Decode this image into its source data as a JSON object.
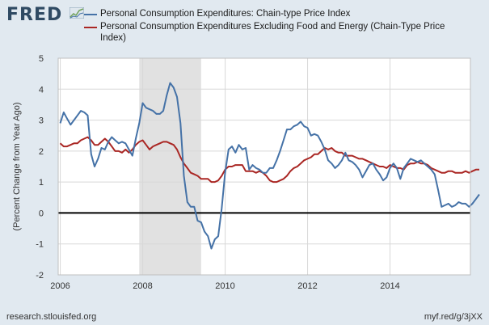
{
  "branding": {
    "logo_text": "FRED",
    "source": "research.stlouisfed.org",
    "short_url": "myf.red/g/3jXX"
  },
  "colors": {
    "series1": "#4572a7",
    "series2": "#aa2724",
    "recession": "#e1e1e1",
    "background": "#e1e9f0"
  },
  "chart_data": {
    "type": "line",
    "ylabel": "(Percent Change from Year Ago)",
    "ylim": [
      -2,
      5
    ],
    "yticks": [
      -2,
      -1,
      0,
      1,
      2,
      3,
      4,
      5
    ],
    "xlim": [
      2005.95,
      2015.95
    ],
    "xticks": [
      {
        "value": 2006,
        "label": "2006"
      },
      {
        "value": 2008,
        "label": "2008"
      },
      {
        "value": 2010,
        "label": "2010"
      },
      {
        "value": 2012,
        "label": "2012"
      },
      {
        "value": 2014,
        "label": "2014"
      }
    ],
    "grid": true,
    "legend_position": "top",
    "recession": [
      {
        "start": 2007.917,
        "end": 2009.417
      }
    ],
    "series": [
      {
        "name": "Personal Consumption Expenditures: Chain-type Price Index",
        "start": 2006.0,
        "step": 0.08333,
        "values": [
          2.9,
          3.25,
          3.05,
          2.85,
          3.0,
          3.15,
          3.3,
          3.25,
          3.15,
          1.9,
          1.5,
          1.75,
          2.1,
          2.05,
          2.3,
          2.45,
          2.35,
          2.25,
          2.3,
          2.25,
          2.05,
          1.85,
          2.4,
          2.9,
          3.55,
          3.4,
          3.35,
          3.3,
          3.2,
          3.2,
          3.3,
          3.8,
          4.2,
          4.05,
          3.75,
          2.9,
          1.2,
          0.35,
          0.2,
          0.2,
          -0.25,
          -0.3,
          -0.6,
          -0.75,
          -1.15,
          -0.85,
          -0.75,
          0.15,
          1.3,
          2.05,
          2.15,
          1.95,
          2.2,
          2.05,
          2.1,
          1.4,
          1.55,
          1.45,
          1.4,
          1.3,
          1.3,
          1.45,
          1.45,
          1.7,
          2.0,
          2.35,
          2.7,
          2.7,
          2.8,
          2.85,
          2.95,
          2.8,
          2.75,
          2.5,
          2.55,
          2.5,
          2.3,
          2.05,
          1.7,
          1.6,
          1.45,
          1.55,
          1.7,
          1.95,
          1.7,
          1.65,
          1.55,
          1.4,
          1.15,
          1.35,
          1.55,
          1.6,
          1.4,
          1.25,
          1.05,
          1.15,
          1.45,
          1.6,
          1.45,
          1.1,
          1.45,
          1.6,
          1.75,
          1.7,
          1.65,
          1.7,
          1.6,
          1.5,
          1.4,
          1.25,
          0.75,
          0.2,
          0.25,
          0.3,
          0.2,
          0.25,
          0.35,
          0.3,
          0.3,
          0.2,
          0.3,
          0.45,
          0.6
        ]
      },
      {
        "name": "Personal Consumption Expenditures Excluding Food and Energy (Chain-Type Price Index)",
        "start": 2006.0,
        "step": 0.08333,
        "values": [
          2.25,
          2.15,
          2.15,
          2.2,
          2.25,
          2.25,
          2.35,
          2.4,
          2.45,
          2.35,
          2.2,
          2.2,
          2.3,
          2.4,
          2.3,
          2.15,
          2.0,
          2.0,
          1.95,
          2.05,
          1.95,
          2.05,
          2.2,
          2.3,
          2.35,
          2.2,
          2.05,
          2.15,
          2.2,
          2.25,
          2.3,
          2.3,
          2.25,
          2.2,
          2.05,
          1.8,
          1.6,
          1.45,
          1.3,
          1.25,
          1.2,
          1.1,
          1.1,
          1.1,
          1.0,
          1.0,
          1.05,
          1.2,
          1.4,
          1.5,
          1.5,
          1.55,
          1.55,
          1.55,
          1.35,
          1.35,
          1.35,
          1.3,
          1.35,
          1.3,
          1.2,
          1.05,
          1.0,
          1.0,
          1.05,
          1.1,
          1.2,
          1.35,
          1.45,
          1.5,
          1.6,
          1.7,
          1.75,
          1.8,
          1.9,
          1.9,
          2.0,
          2.1,
          2.05,
          2.1,
          2.0,
          1.95,
          1.95,
          1.85,
          1.85,
          1.85,
          1.8,
          1.75,
          1.75,
          1.7,
          1.65,
          1.6,
          1.55,
          1.5,
          1.5,
          1.45,
          1.55,
          1.5,
          1.45,
          1.45,
          1.4,
          1.55,
          1.6,
          1.6,
          1.65,
          1.6,
          1.6,
          1.55,
          1.45,
          1.4,
          1.35,
          1.3,
          1.3,
          1.35,
          1.35,
          1.3,
          1.3,
          1.3,
          1.35,
          1.3,
          1.35,
          1.4,
          1.4
        ]
      }
    ]
  }
}
